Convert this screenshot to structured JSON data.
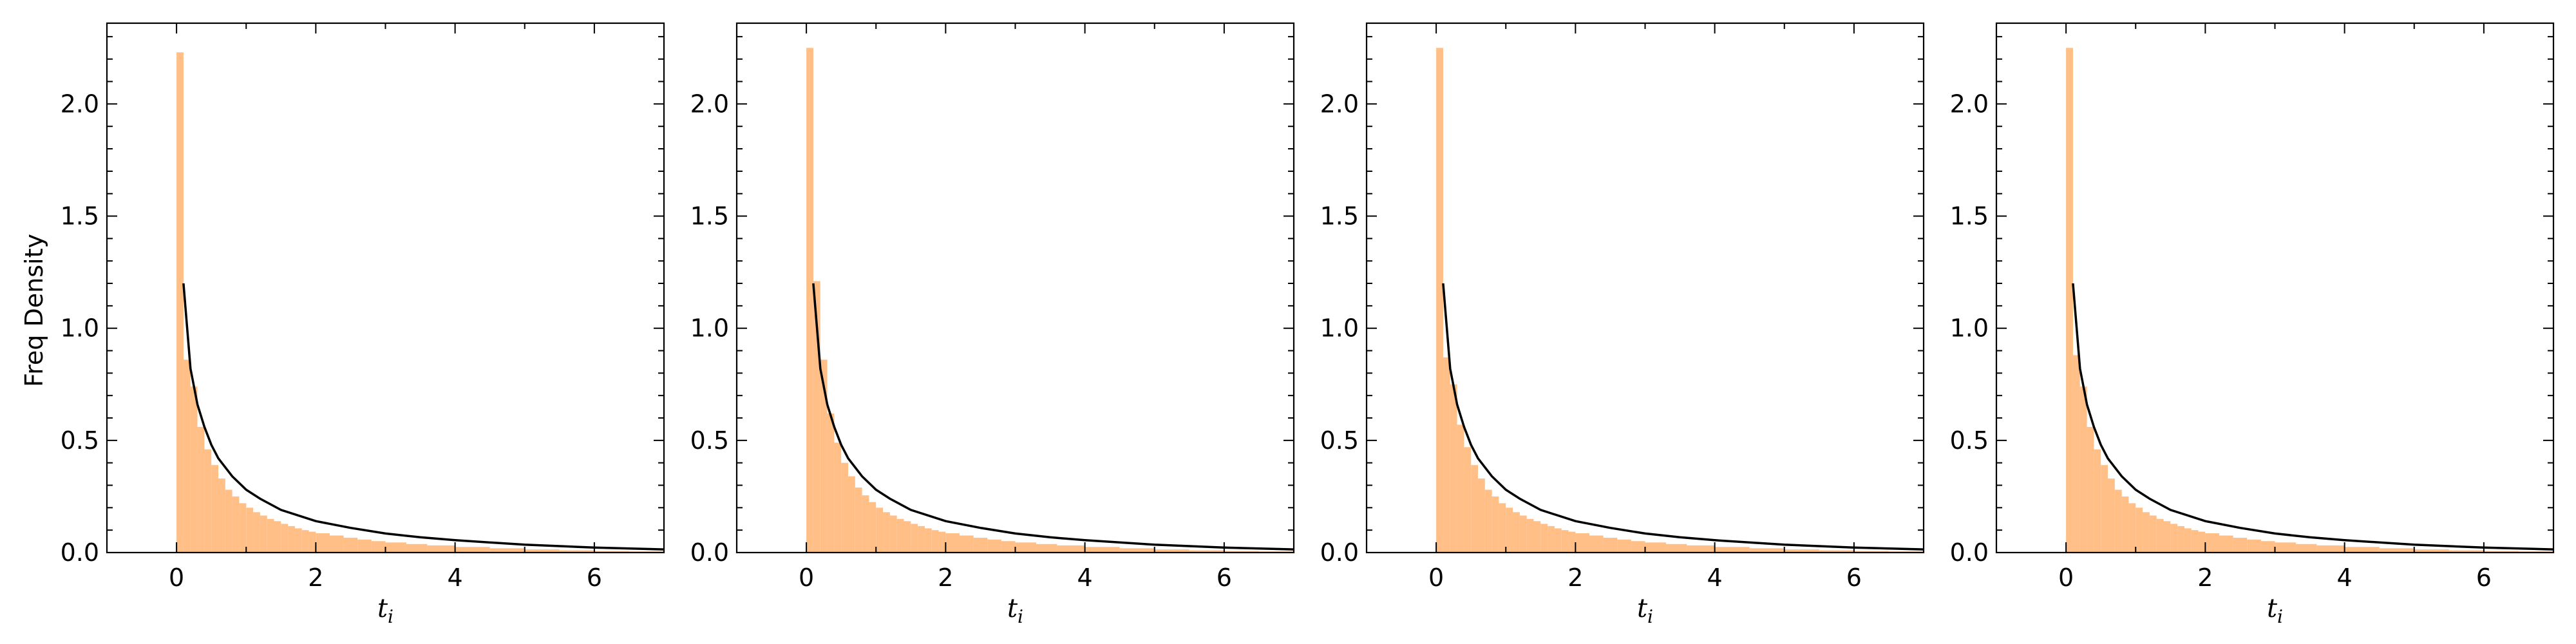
{
  "figure": {
    "ylabel": "Freq Density",
    "xlabel_main": "t",
    "xlabel_sub": "i"
  },
  "colors": {
    "hist_fill": "#ffbf86",
    "curve": "#000000"
  },
  "chart_data": [
    {
      "type": "bar",
      "xlim": [
        -1,
        7
      ],
      "ylim": [
        0,
        2.36
      ],
      "xticks": [
        "0",
        "2",
        "4",
        "6"
      ],
      "yticks": [
        "0.0",
        "0.5",
        "1.0",
        "1.5",
        "2.0"
      ],
      "xlabel": "t_i",
      "ylabel": "Freq Density",
      "series": [
        {
          "kind": "histogram",
          "bin_width": 0.1,
          "bins": [
            0.0,
            0.1,
            0.2,
            0.3,
            0.4,
            0.5,
            0.6,
            0.7,
            0.8,
            0.9,
            1.0,
            1.1,
            1.2,
            1.3,
            1.4,
            1.5,
            1.6,
            1.7,
            1.8,
            1.9,
            2.0,
            2.2,
            2.4,
            2.6,
            2.8,
            3.0,
            3.3,
            3.6,
            4.0,
            4.5,
            5.0,
            5.5,
            6.0,
            6.5
          ],
          "values": [
            2.23,
            0.86,
            0.74,
            0.56,
            0.46,
            0.39,
            0.33,
            0.28,
            0.25,
            0.22,
            0.2,
            0.18,
            0.165,
            0.15,
            0.14,
            0.128,
            0.118,
            0.108,
            0.1,
            0.093,
            0.086,
            0.076,
            0.066,
            0.058,
            0.051,
            0.045,
            0.038,
            0.032,
            0.025,
            0.019,
            0.014,
            0.01,
            0.007,
            0.005
          ]
        },
        {
          "kind": "line",
          "x": [
            0.1,
            0.2,
            0.3,
            0.4,
            0.5,
            0.6,
            0.8,
            1.0,
            1.2,
            1.5,
            2.0,
            2.5,
            3.0,
            3.5,
            4.0,
            5.0,
            6.0,
            7.0
          ],
          "y": [
            1.2,
            0.82,
            0.66,
            0.56,
            0.48,
            0.42,
            0.34,
            0.28,
            0.24,
            0.19,
            0.14,
            0.11,
            0.085,
            0.068,
            0.055,
            0.035,
            0.022,
            0.014
          ]
        }
      ]
    },
    {
      "type": "bar",
      "xlim": [
        -1,
        7
      ],
      "ylim": [
        0,
        2.36
      ],
      "xticks": [
        "0",
        "2",
        "4",
        "6"
      ],
      "yticks": [
        "0.0",
        "0.5",
        "1.0",
        "1.5",
        "2.0"
      ],
      "xlabel": "t_i",
      "series": [
        {
          "kind": "histogram",
          "bin_width": 0.1,
          "bins": [
            0.0,
            0.1,
            0.2,
            0.3,
            0.4,
            0.5,
            0.6,
            0.7,
            0.8,
            0.9,
            1.0,
            1.1,
            1.2,
            1.3,
            1.4,
            1.5,
            1.6,
            1.7,
            1.8,
            1.9,
            2.0,
            2.2,
            2.4,
            2.6,
            2.8,
            3.0,
            3.3,
            3.6,
            4.0,
            4.5,
            5.0,
            5.5,
            6.0,
            6.5
          ],
          "values": [
            2.25,
            1.21,
            0.86,
            0.62,
            0.49,
            0.4,
            0.34,
            0.29,
            0.255,
            0.225,
            0.2,
            0.18,
            0.165,
            0.15,
            0.14,
            0.128,
            0.118,
            0.108,
            0.1,
            0.093,
            0.086,
            0.076,
            0.066,
            0.058,
            0.051,
            0.045,
            0.038,
            0.032,
            0.025,
            0.019,
            0.014,
            0.01,
            0.007,
            0.005
          ]
        },
        {
          "kind": "line",
          "x": [
            0.1,
            0.2,
            0.3,
            0.4,
            0.5,
            0.6,
            0.8,
            1.0,
            1.2,
            1.5,
            2.0,
            2.5,
            3.0,
            3.5,
            4.0,
            5.0,
            6.0,
            7.0
          ],
          "y": [
            1.2,
            0.82,
            0.66,
            0.56,
            0.48,
            0.42,
            0.34,
            0.28,
            0.24,
            0.19,
            0.14,
            0.11,
            0.085,
            0.068,
            0.055,
            0.035,
            0.022,
            0.014
          ]
        }
      ]
    },
    {
      "type": "bar",
      "xlim": [
        -1,
        7
      ],
      "ylim": [
        0,
        2.36
      ],
      "xticks": [
        "0",
        "2",
        "4",
        "6"
      ],
      "yticks": [
        "0.0",
        "0.5",
        "1.0",
        "1.5",
        "2.0"
      ],
      "xlabel": "t_i",
      "series": [
        {
          "kind": "histogram",
          "bin_width": 0.1,
          "bins": [
            0.0,
            0.1,
            0.2,
            0.3,
            0.4,
            0.5,
            0.6,
            0.7,
            0.8,
            0.9,
            1.0,
            1.1,
            1.2,
            1.3,
            1.4,
            1.5,
            1.6,
            1.7,
            1.8,
            1.9,
            2.0,
            2.2,
            2.4,
            2.6,
            2.8,
            3.0,
            3.3,
            3.6,
            4.0,
            4.5,
            5.0,
            5.5,
            6.0,
            6.5
          ],
          "values": [
            2.25,
            0.87,
            0.75,
            0.57,
            0.47,
            0.39,
            0.33,
            0.28,
            0.25,
            0.22,
            0.2,
            0.18,
            0.165,
            0.15,
            0.14,
            0.128,
            0.118,
            0.108,
            0.1,
            0.093,
            0.086,
            0.076,
            0.066,
            0.058,
            0.051,
            0.045,
            0.038,
            0.032,
            0.025,
            0.019,
            0.014,
            0.01,
            0.007,
            0.005
          ]
        },
        {
          "kind": "line",
          "x": [
            0.1,
            0.2,
            0.3,
            0.4,
            0.5,
            0.6,
            0.8,
            1.0,
            1.2,
            1.5,
            2.0,
            2.5,
            3.0,
            3.5,
            4.0,
            5.0,
            6.0,
            7.0
          ],
          "y": [
            1.2,
            0.82,
            0.66,
            0.56,
            0.48,
            0.42,
            0.34,
            0.28,
            0.24,
            0.19,
            0.14,
            0.11,
            0.085,
            0.068,
            0.055,
            0.035,
            0.022,
            0.014
          ]
        }
      ]
    },
    {
      "type": "bar",
      "xlim": [
        -1,
        7
      ],
      "ylim": [
        0,
        2.36
      ],
      "xticks": [
        "0",
        "2",
        "4",
        "6"
      ],
      "yticks": [
        "0.0",
        "0.5",
        "1.0",
        "1.5",
        "2.0"
      ],
      "xlabel": "t_i",
      "series": [
        {
          "kind": "histogram",
          "bin_width": 0.1,
          "bins": [
            0.0,
            0.1,
            0.2,
            0.3,
            0.4,
            0.5,
            0.6,
            0.7,
            0.8,
            0.9,
            1.0,
            1.1,
            1.2,
            1.3,
            1.4,
            1.5,
            1.6,
            1.7,
            1.8,
            1.9,
            2.0,
            2.2,
            2.4,
            2.6,
            2.8,
            3.0,
            3.3,
            3.6,
            4.0,
            4.5,
            5.0,
            5.5,
            6.0,
            6.5
          ],
          "values": [
            2.25,
            0.88,
            0.74,
            0.56,
            0.46,
            0.39,
            0.33,
            0.28,
            0.25,
            0.22,
            0.2,
            0.18,
            0.165,
            0.15,
            0.14,
            0.128,
            0.118,
            0.108,
            0.1,
            0.093,
            0.086,
            0.076,
            0.066,
            0.058,
            0.051,
            0.045,
            0.038,
            0.032,
            0.025,
            0.019,
            0.014,
            0.01,
            0.007,
            0.005
          ]
        },
        {
          "kind": "line",
          "x": [
            0.1,
            0.2,
            0.3,
            0.4,
            0.5,
            0.6,
            0.8,
            1.0,
            1.2,
            1.5,
            2.0,
            2.5,
            3.0,
            3.5,
            4.0,
            5.0,
            6.0,
            7.0
          ],
          "y": [
            1.2,
            0.82,
            0.66,
            0.56,
            0.48,
            0.42,
            0.34,
            0.28,
            0.24,
            0.19,
            0.14,
            0.11,
            0.085,
            0.068,
            0.055,
            0.035,
            0.022,
            0.014
          ]
        }
      ]
    }
  ]
}
